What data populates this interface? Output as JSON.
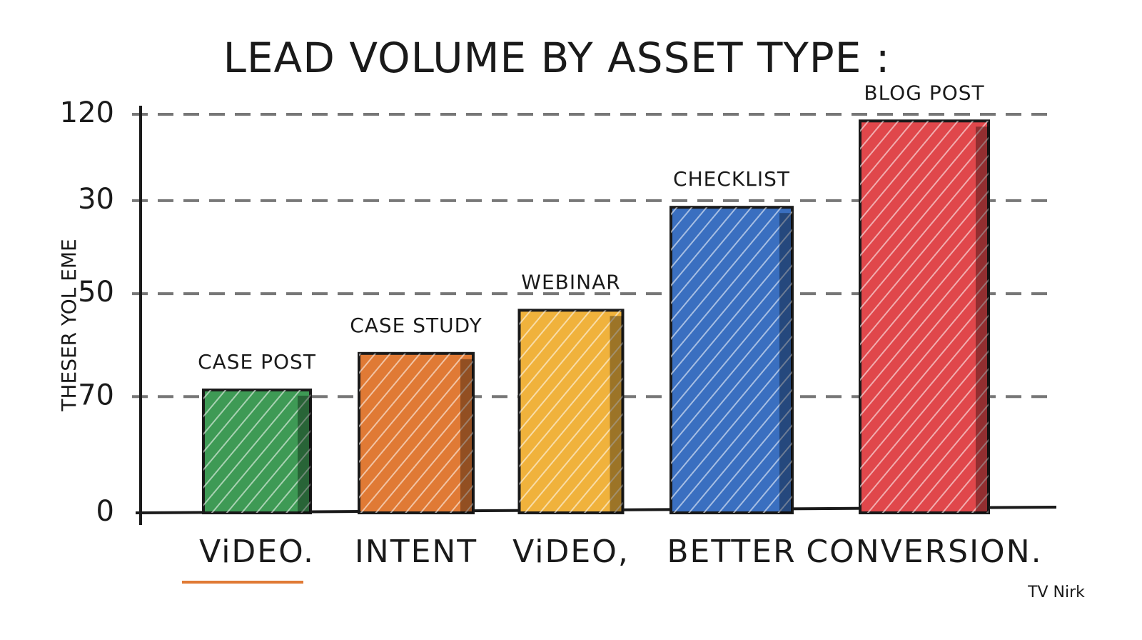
{
  "chart_data": {
    "type": "bar",
    "title": "LEAD VOLUME BY ASSET TYPE :",
    "y_label": "THESER YOL EME",
    "categories": [
      "ViDEO.",
      "INTENT",
      "ViDEO,",
      "BETTER",
      "CONVERSION."
    ],
    "values": [
      37,
      48,
      61,
      92,
      118
    ],
    "annotations": [
      "CASE POST",
      "CASE STUDY",
      "WEBINAR",
      "CHECKLIST",
      "BLOG POST"
    ],
    "colors": [
      "#3e9a55",
      "#e07a35",
      "#f0b23c",
      "#3a6fc0",
      "#e0474b"
    ],
    "ylim": [
      0,
      120
    ],
    "yticks": [
      0,
      {
        "value": 35,
        "label": "70"
      },
      {
        "value": 66,
        "label": "50"
      },
      {
        "value": 94,
        "label": "30"
      },
      120
    ],
    "grid": true,
    "signature": "TV Nirk"
  }
}
